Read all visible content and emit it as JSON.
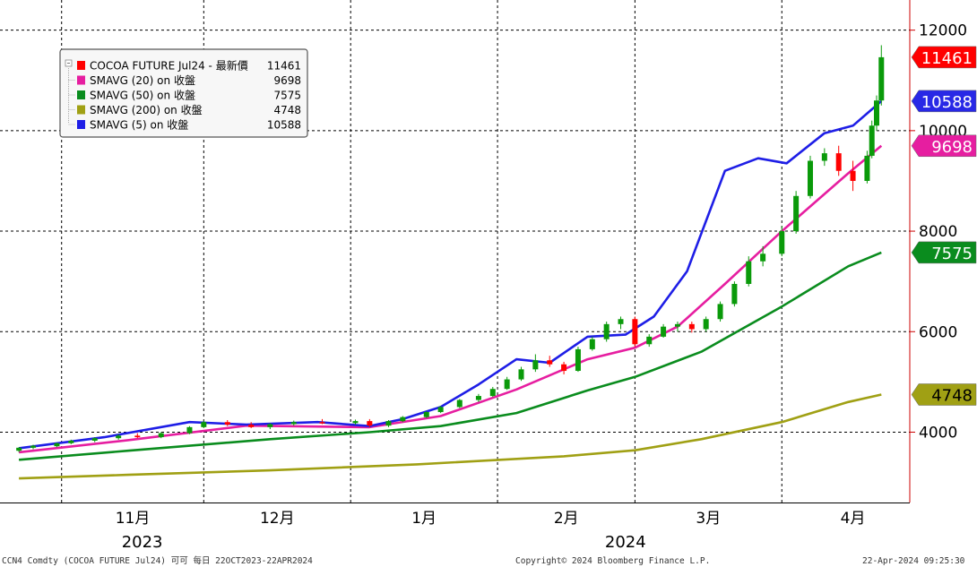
{
  "chart_data": {
    "type": "candlestick",
    "y_axis": {
      "range": [
        2600,
        12600
      ],
      "ticks": [
        "4000",
        "6000",
        "8000",
        "10000",
        "12000"
      ],
      "tick_values": [
        4000,
        6000,
        8000,
        10000,
        12000
      ],
      "position": "right",
      "grid": true
    },
    "x_axis": {
      "months": [
        "11月",
        "12月",
        "1月",
        "2月",
        "3月",
        "4月"
      ],
      "month_dates": [
        "2023-11-01",
        "2023-12-01",
        "2024-01-01",
        "2024-02-01",
        "2024-03-01",
        "2024-04-01"
      ],
      "years": [
        "2023",
        "2024"
      ],
      "range": [
        "2023-10-22",
        "2024-04-22"
      ],
      "grid": true
    },
    "legend": {
      "placement": "top-left",
      "entries": [
        {
          "label": "COCOA FUTURE Jul24 - 最新價",
          "value": "11461",
          "color": "#ff0000"
        },
        {
          "label": "SMAVG (20)  on 收盤",
          "value": "9698",
          "color": "#e61ea0"
        },
        {
          "label": "SMAVG (50)  on 收盤",
          "value": "7575",
          "color": "#0a8c1e"
        },
        {
          "label": "SMAVG (200)  on 收盤",
          "value": "4748",
          "color": "#a0a014"
        },
        {
          "label": "SMAVG (5)  on 收盤",
          "value": "10588",
          "color": "#1e1ee6"
        }
      ]
    },
    "last_value_tags": [
      {
        "label": "11461",
        "value": 11461,
        "bg": "#ff0000",
        "fg": "#ffffff"
      },
      {
        "label": "10588",
        "value": 10588,
        "bg": "#2828e6",
        "fg": "#ffffff"
      },
      {
        "label": "9698",
        "value": 9698,
        "bg": "#e61ea0",
        "fg": "#ffffff"
      },
      {
        "label": "7575",
        "value": 7575,
        "bg": "#0a8c1e",
        "fg": "#ffffff"
      },
      {
        "label": "4748",
        "value": 4748,
        "bg": "#a0a014",
        "fg": "#000000"
      }
    ],
    "colors": {
      "up": "#0a9a0a",
      "down": "#ff0000",
      "axis": "#cc0000",
      "grid": "#000000"
    },
    "series": [
      {
        "name": "SMAVG (200)",
        "color": "#a0a014",
        "points": [
          [
            "2023-10-23",
            3080
          ],
          [
            "2023-11-15",
            3150
          ],
          [
            "2023-12-15",
            3240
          ],
          [
            "2024-01-15",
            3360
          ],
          [
            "2024-02-15",
            3520
          ],
          [
            "2024-03-01",
            3640
          ],
          [
            "2024-03-15",
            3860
          ],
          [
            "2024-04-01",
            4200
          ],
          [
            "2024-04-15",
            4600
          ],
          [
            "2024-04-22",
            4748
          ]
        ]
      },
      {
        "name": "SMAVG (50)",
        "color": "#0a8c1e",
        "points": [
          [
            "2023-10-23",
            3450
          ],
          [
            "2023-11-15",
            3630
          ],
          [
            "2023-12-15",
            3860
          ],
          [
            "2024-01-05",
            4000
          ],
          [
            "2024-01-20",
            4120
          ],
          [
            "2024-02-05",
            4380
          ],
          [
            "2024-02-20",
            4830
          ],
          [
            "2024-03-01",
            5100
          ],
          [
            "2024-03-15",
            5600
          ],
          [
            "2024-04-01",
            6500
          ],
          [
            "2024-04-15",
            7300
          ],
          [
            "2024-04-22",
            7575
          ]
        ]
      },
      {
        "name": "SMAVG (20)",
        "color": "#e61ea0",
        "points": [
          [
            "2023-10-23",
            3600
          ],
          [
            "2023-11-15",
            3840
          ],
          [
            "2023-12-10",
            4130
          ],
          [
            "2024-01-05",
            4100
          ],
          [
            "2024-01-20",
            4320
          ],
          [
            "2024-02-05",
            4850
          ],
          [
            "2024-02-20",
            5450
          ],
          [
            "2024-03-01",
            5680
          ],
          [
            "2024-03-10",
            6100
          ],
          [
            "2024-03-20",
            6950
          ],
          [
            "2024-04-01",
            8000
          ],
          [
            "2024-04-15",
            9150
          ],
          [
            "2024-04-22",
            9698
          ]
        ]
      },
      {
        "name": "SMAVG (5)",
        "color": "#1e1ee6",
        "points": [
          [
            "2023-10-23",
            3680
          ],
          [
            "2023-11-10",
            3900
          ],
          [
            "2023-11-28",
            4200
          ],
          [
            "2023-12-10",
            4150
          ],
          [
            "2023-12-25",
            4200
          ],
          [
            "2024-01-05",
            4120
          ],
          [
            "2024-01-12",
            4260
          ],
          [
            "2024-01-20",
            4500
          ],
          [
            "2024-01-28",
            4950
          ],
          [
            "2024-02-05",
            5450
          ],
          [
            "2024-02-12",
            5380
          ],
          [
            "2024-02-20",
            5900
          ],
          [
            "2024-02-28",
            5940
          ],
          [
            "2024-03-05",
            6300
          ],
          [
            "2024-03-12",
            7200
          ],
          [
            "2024-03-20",
            9200
          ],
          [
            "2024-03-27",
            9450
          ],
          [
            "2024-04-02",
            9350
          ],
          [
            "2024-04-10",
            9950
          ],
          [
            "2024-04-16",
            10100
          ],
          [
            "2024-04-22",
            10588
          ]
        ]
      }
    ],
    "candles": [
      [
        "2023-10-23",
        3630,
        3700,
        3600,
        3690
      ],
      [
        "2023-10-26",
        3690,
        3750,
        3660,
        3730
      ],
      [
        "2023-10-31",
        3720,
        3790,
        3700,
        3780
      ],
      [
        "2023-11-03",
        3780,
        3850,
        3760,
        3830
      ],
      [
        "2023-11-08",
        3830,
        3900,
        3800,
        3880
      ],
      [
        "2023-11-13",
        3880,
        3960,
        3850,
        3930
      ],
      [
        "2023-11-17",
        3930,
        3980,
        3880,
        3900
      ],
      [
        "2023-11-22",
        3900,
        4000,
        3880,
        3980
      ],
      [
        "2023-11-28",
        3980,
        4120,
        3960,
        4100
      ],
      [
        "2023-12-01",
        4100,
        4230,
        4080,
        4200
      ],
      [
        "2023-12-06",
        4200,
        4240,
        4120,
        4150
      ],
      [
        "2023-12-11",
        4150,
        4200,
        4080,
        4100
      ],
      [
        "2023-12-15",
        4100,
        4180,
        4060,
        4160
      ],
      [
        "2023-12-20",
        4160,
        4230,
        4130,
        4200
      ],
      [
        "2023-12-26",
        4200,
        4260,
        4160,
        4180
      ],
      [
        "2024-01-02",
        4180,
        4250,
        4150,
        4220
      ],
      [
        "2024-01-05",
        4220,
        4260,
        4100,
        4130
      ],
      [
        "2024-01-09",
        4130,
        4240,
        4100,
        4220
      ],
      [
        "2024-01-12",
        4220,
        4320,
        4200,
        4300
      ],
      [
        "2024-01-17",
        4300,
        4420,
        4280,
        4400
      ],
      [
        "2024-01-20",
        4400,
        4520,
        4380,
        4500
      ],
      [
        "2024-01-24",
        4500,
        4660,
        4480,
        4640
      ],
      [
        "2024-01-28",
        4640,
        4760,
        4600,
        4720
      ],
      [
        "2024-01-31",
        4720,
        4900,
        4700,
        4860
      ],
      [
        "2024-02-03",
        4860,
        5100,
        4840,
        5050
      ],
      [
        "2024-02-06",
        5050,
        5300,
        5020,
        5250
      ],
      [
        "2024-02-09",
        5250,
        5550,
        5200,
        5430
      ],
      [
        "2024-02-12",
        5430,
        5520,
        5300,
        5350
      ],
      [
        "2024-02-15",
        5350,
        5400,
        5150,
        5220
      ],
      [
        "2024-02-18",
        5220,
        5700,
        5200,
        5650
      ],
      [
        "2024-02-21",
        5650,
        5900,
        5620,
        5850
      ],
      [
        "2024-02-24",
        5850,
        6200,
        5800,
        6150
      ],
      [
        "2024-02-27",
        6150,
        6300,
        6050,
        6250
      ],
      [
        "2024-03-01",
        6250,
        6300,
        5700,
        5750
      ],
      [
        "2024-03-04",
        5750,
        5950,
        5700,
        5900
      ],
      [
        "2024-03-07",
        5900,
        6150,
        5880,
        6100
      ],
      [
        "2024-03-10",
        6100,
        6200,
        6000,
        6150
      ],
      [
        "2024-03-13",
        6150,
        6200,
        5980,
        6050
      ],
      [
        "2024-03-16",
        6050,
        6300,
        6000,
        6250
      ],
      [
        "2024-03-19",
        6250,
        6600,
        6200,
        6550
      ],
      [
        "2024-03-22",
        6550,
        7000,
        6500,
        6950
      ],
      [
        "2024-03-25",
        6950,
        7500,
        6900,
        7400
      ],
      [
        "2024-03-28",
        7400,
        7700,
        7300,
        7550
      ],
      [
        "2024-04-01",
        7550,
        8100,
        7500,
        8000
      ],
      [
        "2024-04-04",
        8000,
        8800,
        7950,
        8700
      ],
      [
        "2024-04-07",
        8700,
        9500,
        8650,
        9400
      ],
      [
        "2024-04-10",
        9400,
        9650,
        9300,
        9550
      ],
      [
        "2024-04-13",
        9550,
        9700,
        9100,
        9200
      ],
      [
        "2024-04-16",
        9200,
        9400,
        8800,
        9000
      ],
      [
        "2024-04-19",
        9000,
        9600,
        8950,
        9500
      ],
      [
        "2024-04-20",
        9500,
        10200,
        9450,
        10100
      ],
      [
        "2024-04-21",
        10100,
        10700,
        10000,
        10600
      ],
      [
        "2024-04-22",
        10600,
        11700,
        10500,
        11461
      ]
    ]
  },
  "footer": {
    "left": "CCN4 Comdty (COCOA FUTURE    Jul24) 可可  每日 22OCT2023-22APR2024",
    "center": "Copyright© 2024 Bloomberg Finance L.P.",
    "right": "22-Apr-2024 09:25:30"
  }
}
